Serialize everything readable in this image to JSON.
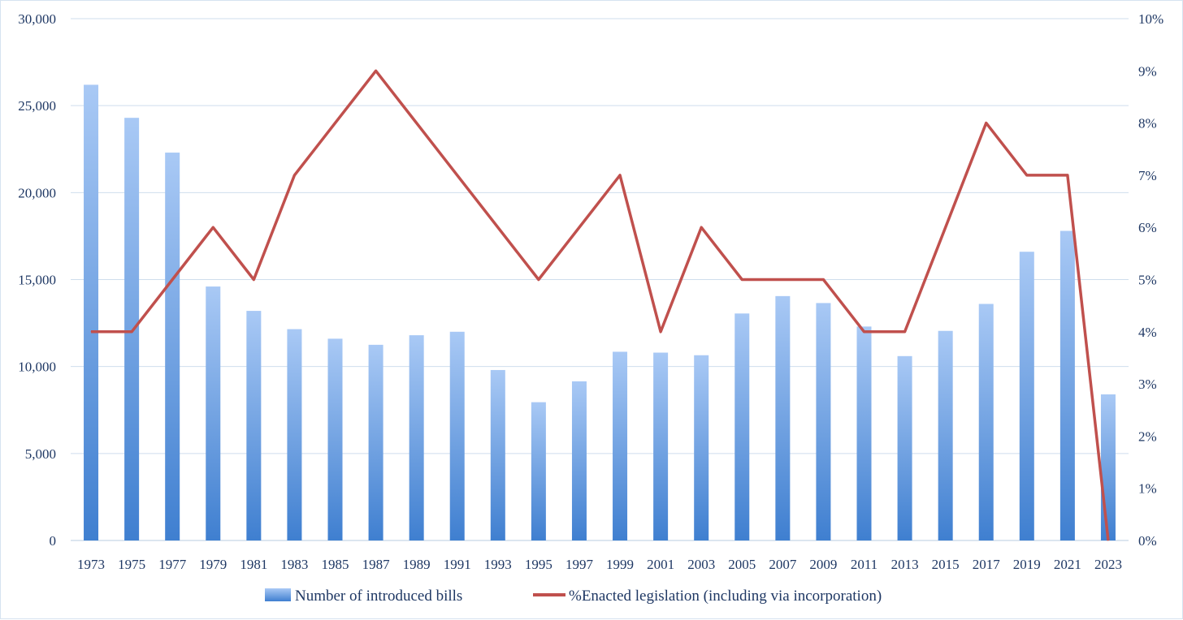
{
  "chart_data": {
    "type": "bar",
    "categories": [
      "1973",
      "1975",
      "1977",
      "1979",
      "1981",
      "1983",
      "1985",
      "1987",
      "1989",
      "1991",
      "1993",
      "1995",
      "1997",
      "1999",
      "2001",
      "2003",
      "2005",
      "2007",
      "2009",
      "2011",
      "2013",
      "2015",
      "2017",
      "2019",
      "2021",
      "2023"
    ],
    "series": [
      {
        "name": "Number of introduced bills",
        "type": "bar",
        "axis": "left",
        "color": "#5b9bd5",
        "values": [
          26200,
          24300,
          22300,
          14600,
          13200,
          12150,
          11600,
          11250,
          11800,
          12000,
          9800,
          7950,
          9150,
          10850,
          10800,
          10650,
          13050,
          14050,
          13650,
          12300,
          10600,
          12050,
          13600,
          16600,
          17800,
          8400
        ]
      },
      {
        "name": "%Enacted legislation (including via incorporation)",
        "type": "line",
        "axis": "right",
        "color": "#c0504d",
        "values": [
          4,
          4,
          5,
          6,
          5,
          7,
          8,
          9,
          8,
          7,
          6,
          5,
          6,
          7,
          4,
          6,
          5,
          5,
          5,
          4,
          4,
          6,
          8,
          7,
          7,
          0
        ]
      }
    ],
    "y_left": {
      "min": 0,
      "max": 30000,
      "step": 5000,
      "tick_labels": [
        "0",
        "5,000",
        "10,000",
        "15,000",
        "20,000",
        "25,000",
        "30,000"
      ]
    },
    "y_right": {
      "min": 0,
      "max": 10,
      "step": 1,
      "tick_labels": [
        "0%",
        "1%",
        "2%",
        "3%",
        "4%",
        "5%",
        "6%",
        "7%",
        "8%",
        "9%",
        "10%"
      ]
    },
    "grid": true,
    "legend_position": "bottom"
  }
}
